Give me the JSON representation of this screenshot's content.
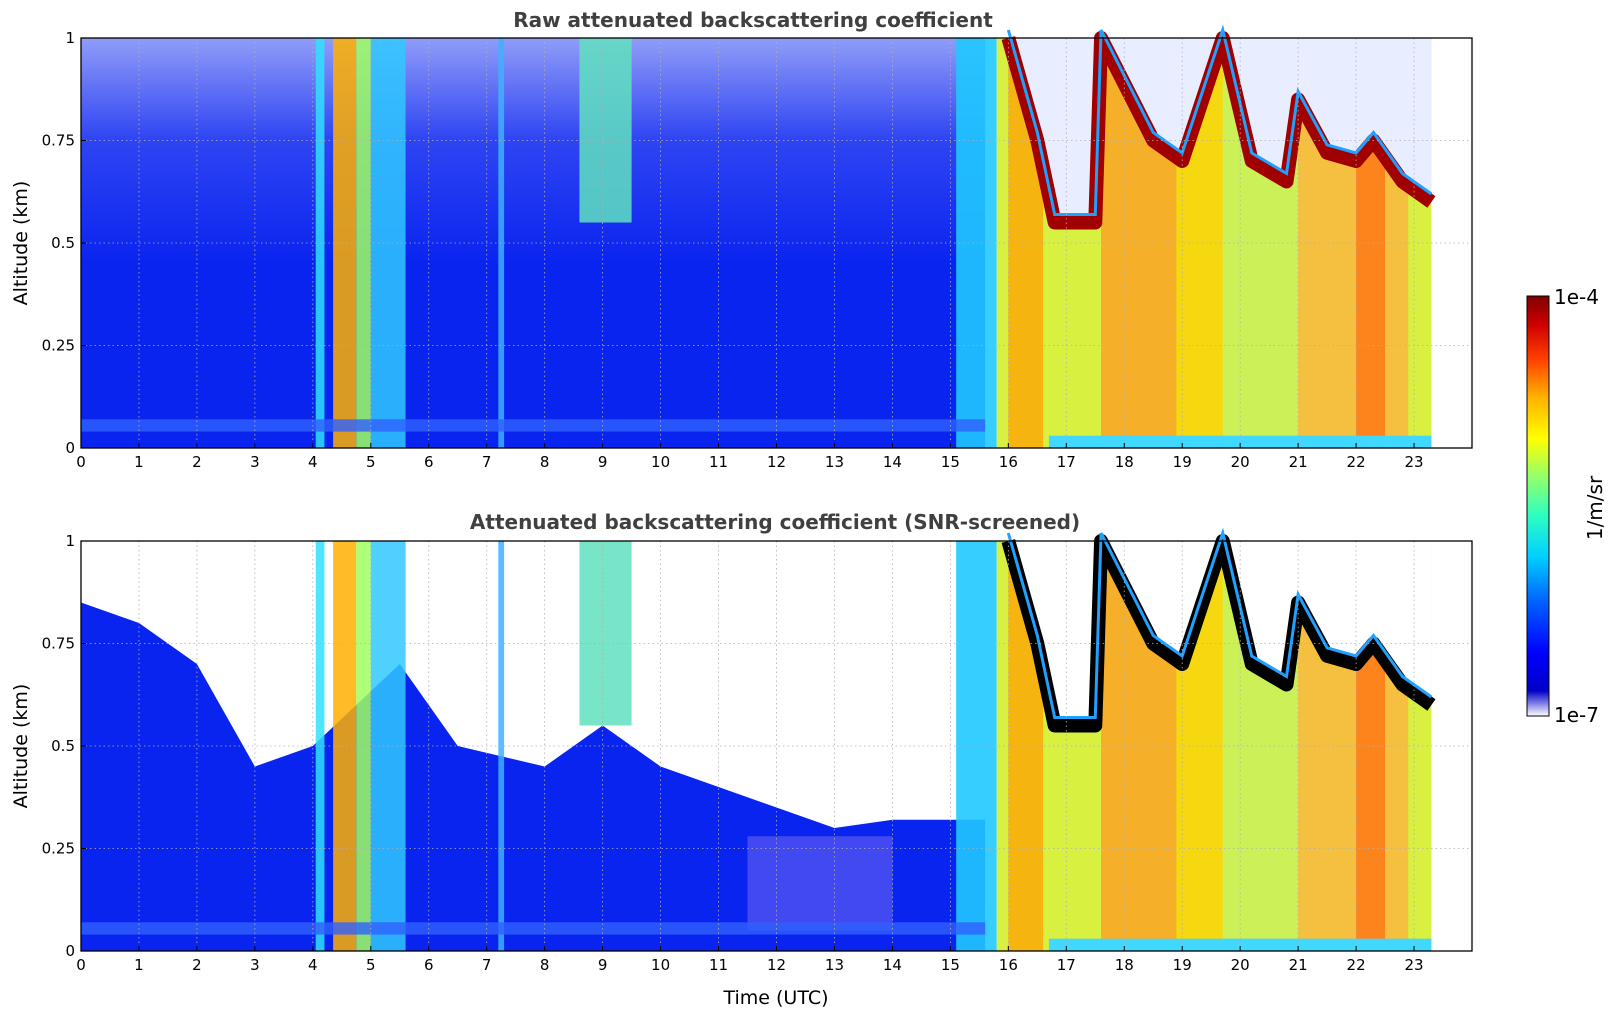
{
  "chart_data": [
    {
      "type": "heatmap",
      "title": "Raw attenuated backscattering coefficient",
      "xlabel": "",
      "ylabel": "Altitude (km)",
      "xlim": [
        0,
        24
      ],
      "ylim": [
        0,
        1
      ],
      "x_ticks": [
        "0",
        "1",
        "2",
        "3",
        "4",
        "5",
        "6",
        "7",
        "8",
        "9",
        "10",
        "11",
        "12",
        "13",
        "14",
        "15",
        "16",
        "17",
        "18",
        "19",
        "20",
        "21",
        "22",
        "23"
      ],
      "y_ticks": [
        "0",
        "0.25",
        "0.5",
        "0.75",
        "1"
      ],
      "grid": true,
      "color_scale": "log",
      "data_end_hour": 23.3,
      "regimes": [
        {
          "from_hour": 0,
          "to_hour": 15.6,
          "description_value": "clear-air, low backscatter ~1e-7 to 1e-6, noisy aloft"
        },
        {
          "from_hour": 15.6,
          "to_hour": 23.3,
          "description_value": "cloud/aerosol layer, high backscatter ~1e-5 to 1e-4"
        }
      ],
      "cloud_top_km": [
        {
          "x": 16.0,
          "y": 1.0
        },
        {
          "x": 16.5,
          "y": 0.75
        },
        {
          "x": 16.8,
          "y": 0.55
        },
        {
          "x": 17.5,
          "y": 0.55
        },
        {
          "x": 17.6,
          "y": 1.0
        },
        {
          "x": 18.5,
          "y": 0.75
        },
        {
          "x": 19.0,
          "y": 0.7
        },
        {
          "x": 19.7,
          "y": 1.0
        },
        {
          "x": 20.2,
          "y": 0.7
        },
        {
          "x": 20.8,
          "y": 0.65
        },
        {
          "x": 21.0,
          "y": 0.85
        },
        {
          "x": 21.5,
          "y": 0.72
        },
        {
          "x": 22.0,
          "y": 0.7
        },
        {
          "x": 22.3,
          "y": 0.75
        },
        {
          "x": 22.8,
          "y": 0.65
        },
        {
          "x": 23.3,
          "y": 0.6
        }
      ]
    },
    {
      "type": "heatmap",
      "title": "Attenuated backscattering coefficient (SNR-screened)",
      "xlabel": "Time (UTC)",
      "ylabel": "Altitude (km)",
      "xlim": [
        0,
        24
      ],
      "ylim": [
        0,
        1
      ],
      "x_ticks": [
        "0",
        "1",
        "2",
        "3",
        "4",
        "5",
        "6",
        "7",
        "8",
        "9",
        "10",
        "11",
        "12",
        "13",
        "14",
        "15",
        "16",
        "17",
        "18",
        "19",
        "20",
        "21",
        "22",
        "23"
      ],
      "y_ticks": [
        "0",
        "0.25",
        "0.5",
        "0.75",
        "1"
      ],
      "grid": true,
      "color_scale": "log",
      "data_end_hour": 23.3,
      "screened_top_km": [
        {
          "x": 0.0,
          "y": 0.85
        },
        {
          "x": 1.0,
          "y": 0.8
        },
        {
          "x": 2.0,
          "y": 0.7
        },
        {
          "x": 3.0,
          "y": 0.45
        },
        {
          "x": 4.0,
          "y": 0.5
        },
        {
          "x": 5.5,
          "y": 0.7
        },
        {
          "x": 6.5,
          "y": 0.5
        },
        {
          "x": 8.0,
          "y": 0.45
        },
        {
          "x": 9.0,
          "y": 0.55
        },
        {
          "x": 10.0,
          "y": 0.45
        },
        {
          "x": 11.0,
          "y": 0.4
        },
        {
          "x": 12.0,
          "y": 0.35
        },
        {
          "x": 13.0,
          "y": 0.3
        },
        {
          "x": 14.0,
          "y": 0.32
        },
        {
          "x": 15.0,
          "y": 0.32
        }
      ]
    }
  ],
  "colorbar": {
    "label": "1/m/sr",
    "max_label": "1e-4",
    "min_label": "1e-7",
    "scale": "log",
    "colormap": [
      "#ffffff",
      "#0000c8",
      "#0000ff",
      "#0050ff",
      "#00c8ff",
      "#00ffd0",
      "#80ff80",
      "#ffff00",
      "#ffc000",
      "#ff6000",
      "#e00000",
      "#800000"
    ]
  }
}
